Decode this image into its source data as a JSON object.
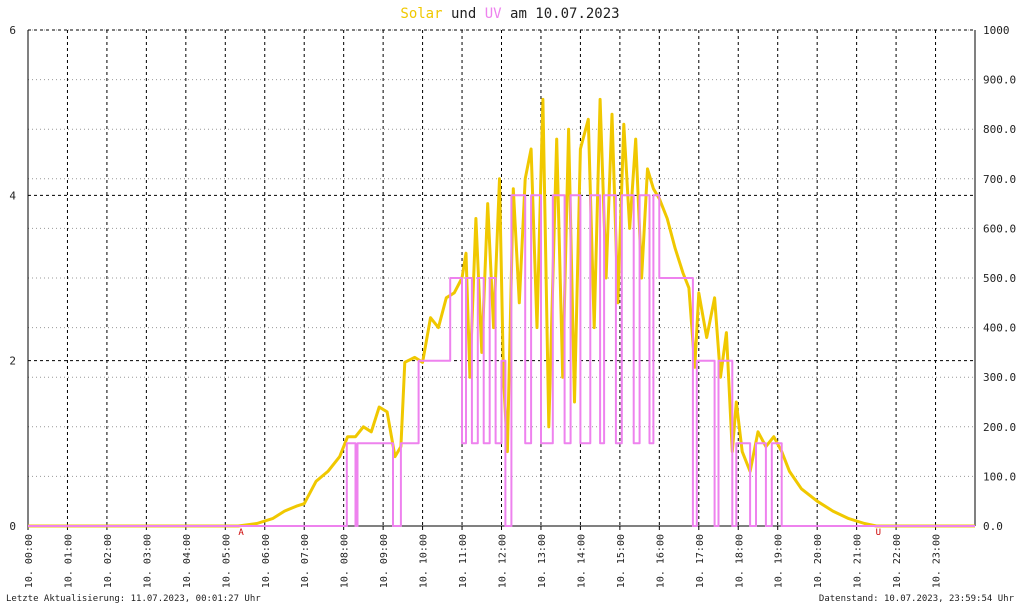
{
  "chart_data": {
    "type": "line",
    "title_connector": "und",
    "title_date": "am 10.07.2023",
    "xlim": [
      0,
      24
    ],
    "xticks": [
      {
        "value": 0,
        "label": "10. 00:00"
      },
      {
        "value": 1,
        "label": "10. 01:00"
      },
      {
        "value": 2,
        "label": "10. 02:00"
      },
      {
        "value": 3,
        "label": "10. 03:00"
      },
      {
        "value": 4,
        "label": "10. 04:00"
      },
      {
        "value": 5,
        "label": "10. 05:00"
      },
      {
        "value": 6,
        "label": "10. 06:00"
      },
      {
        "value": 7,
        "label": "10. 07:00"
      },
      {
        "value": 8,
        "label": "10. 08:00"
      },
      {
        "value": 9,
        "label": "10. 09:00"
      },
      {
        "value": 10,
        "label": "10. 10:00"
      },
      {
        "value": 11,
        "label": "10. 11:00"
      },
      {
        "value": 12,
        "label": "10. 12:00"
      },
      {
        "value": 13,
        "label": "10. 13:00"
      },
      {
        "value": 14,
        "label": "10. 14:00"
      },
      {
        "value": 15,
        "label": "10. 15:00"
      },
      {
        "value": 16,
        "label": "10. 16:00"
      },
      {
        "value": 17,
        "label": "10. 17:00"
      },
      {
        "value": 18,
        "label": "10. 18:00"
      },
      {
        "value": 19,
        "label": "10. 19:00"
      },
      {
        "value": 20,
        "label": "10. 20:00"
      },
      {
        "value": 21,
        "label": "10. 21:00"
      },
      {
        "value": 22,
        "label": "10. 22:00"
      },
      {
        "value": 23,
        "label": "10. 23:00"
      }
    ],
    "ylim": [
      0,
      6
    ],
    "yticks": [
      0,
      2,
      4,
      6
    ],
    "y2lim": [
      0,
      1000
    ],
    "y2ticks": [
      {
        "value": 0,
        "label": "0.0"
      },
      {
        "value": 100,
        "label": "100.0"
      },
      {
        "value": 200,
        "label": "200.0"
      },
      {
        "value": 300,
        "label": "300.0"
      },
      {
        "value": 400,
        "label": "400.0"
      },
      {
        "value": 500,
        "label": "500.0"
      },
      {
        "value": 600,
        "label": "600.0"
      },
      {
        "value": 700,
        "label": "700.0"
      },
      {
        "value": 800,
        "label": "800.0"
      },
      {
        "value": 900,
        "label": "900.0"
      },
      {
        "value": 1000,
        "label": "1000"
      }
    ],
    "grid": true,
    "series": [
      {
        "name": "Solar",
        "color": "#f0c800",
        "axis": "y2",
        "x": [
          0,
          5.33,
          5.8,
          6.2,
          6.5,
          6.8,
          7.0,
          7.3,
          7.6,
          7.9,
          8.1,
          8.3,
          8.5,
          8.7,
          8.9,
          9.1,
          9.3,
          9.45,
          9.55,
          9.8,
          10.0,
          10.2,
          10.4,
          10.6,
          10.8,
          11.0,
          11.1,
          11.2,
          11.35,
          11.5,
          11.65,
          11.8,
          11.95,
          12.05,
          12.15,
          12.3,
          12.45,
          12.6,
          12.75,
          12.9,
          13.05,
          13.2,
          13.4,
          13.55,
          13.7,
          13.85,
          14.0,
          14.2,
          14.35,
          14.5,
          14.65,
          14.8,
          14.95,
          15.1,
          15.25,
          15.4,
          15.55,
          15.7,
          15.85,
          16.0,
          16.2,
          16.4,
          16.6,
          16.75,
          16.9,
          17.0,
          17.2,
          17.4,
          17.55,
          17.7,
          17.85,
          17.95,
          18.1,
          18.3,
          18.5,
          18.7,
          18.9,
          19.1,
          19.3,
          19.6,
          20.0,
          20.4,
          20.8,
          21.2,
          21.5,
          24
        ],
        "values": [
          0,
          0,
          5,
          15,
          30,
          40,
          45,
          90,
          110,
          140,
          180,
          180,
          200,
          190,
          240,
          230,
          140,
          160,
          330,
          340,
          330,
          420,
          400,
          460,
          470,
          500,
          550,
          300,
          620,
          350,
          650,
          400,
          700,
          300,
          150,
          680,
          450,
          700,
          760,
          400,
          860,
          200,
          780,
          300,
          800,
          250,
          760,
          820,
          400,
          860,
          500,
          830,
          450,
          810,
          600,
          780,
          500,
          720,
          680,
          660,
          620,
          560,
          510,
          480,
          320,
          470,
          380,
          460,
          300,
          390,
          150,
          250,
          150,
          110,
          190,
          160,
          180,
          150,
          110,
          75,
          50,
          30,
          15,
          5,
          0,
          0
        ]
      },
      {
        "name": "UV",
        "color": "#ee82ee",
        "x": [
          0,
          8.08,
          8.08,
          8.3,
          8.3,
          8.35,
          8.35,
          9.25,
          9.25,
          9.45,
          9.45,
          9.9,
          9.9,
          10.7,
          10.7,
          11.0,
          11.0,
          11.1,
          11.1,
          11.25,
          11.25,
          11.4,
          11.4,
          11.55,
          11.55,
          11.7,
          11.7,
          11.85,
          11.85,
          12.0,
          12.0,
          12.1,
          12.1,
          12.25,
          12.25,
          12.6,
          12.6,
          12.75,
          12.75,
          13.0,
          13.0,
          13.3,
          13.3,
          13.6,
          13.6,
          13.75,
          13.75,
          14.0,
          14.0,
          14.25,
          14.25,
          14.5,
          14.5,
          14.6,
          14.6,
          14.9,
          14.9,
          15.05,
          15.05,
          15.35,
          15.35,
          15.5,
          15.5,
          15.75,
          15.75,
          15.85,
          15.85,
          16.0,
          16.0,
          16.85,
          16.85,
          16.95,
          16.95,
          17.4,
          17.4,
          17.5,
          17.5,
          17.85,
          17.85,
          17.95,
          17.95,
          18.3,
          18.3,
          18.45,
          18.45,
          18.7,
          18.7,
          18.85,
          18.85,
          19.1,
          19.1,
          24
        ],
        "values": [
          0,
          0,
          1,
          1,
          0,
          0,
          1,
          1,
          0,
          0,
          1,
          1,
          2,
          2,
          3,
          3,
          1,
          1,
          3,
          3,
          1,
          1,
          3,
          3,
          1,
          1,
          3,
          3,
          1,
          1,
          2,
          2,
          0,
          0,
          4,
          4,
          1,
          1,
          4,
          4,
          1,
          1,
          4,
          4,
          1,
          1,
          4,
          4,
          1,
          1,
          4,
          4,
          1,
          1,
          4,
          4,
          1,
          1,
          4,
          4,
          1,
          1,
          4,
          4,
          1,
          1,
          4,
          4,
          3,
          3,
          0,
          0,
          2,
          2,
          0,
          0,
          2,
          2,
          0,
          0,
          1,
          1,
          0,
          0,
          1,
          1,
          0,
          0,
          1,
          1,
          0,
          0
        ]
      }
    ],
    "annotations": [
      {
        "text": "A",
        "x": 5.4,
        "color": "#cc0000"
      },
      {
        "text": "U",
        "x": 21.55,
        "color": "#cc0000"
      }
    ],
    "footer_left": "Letzte Aktualisierung: 11.07.2023, 00:01:27 Uhr",
    "footer_right": "Datenstand: 10.07.2023, 23:59:54 Uhr"
  }
}
